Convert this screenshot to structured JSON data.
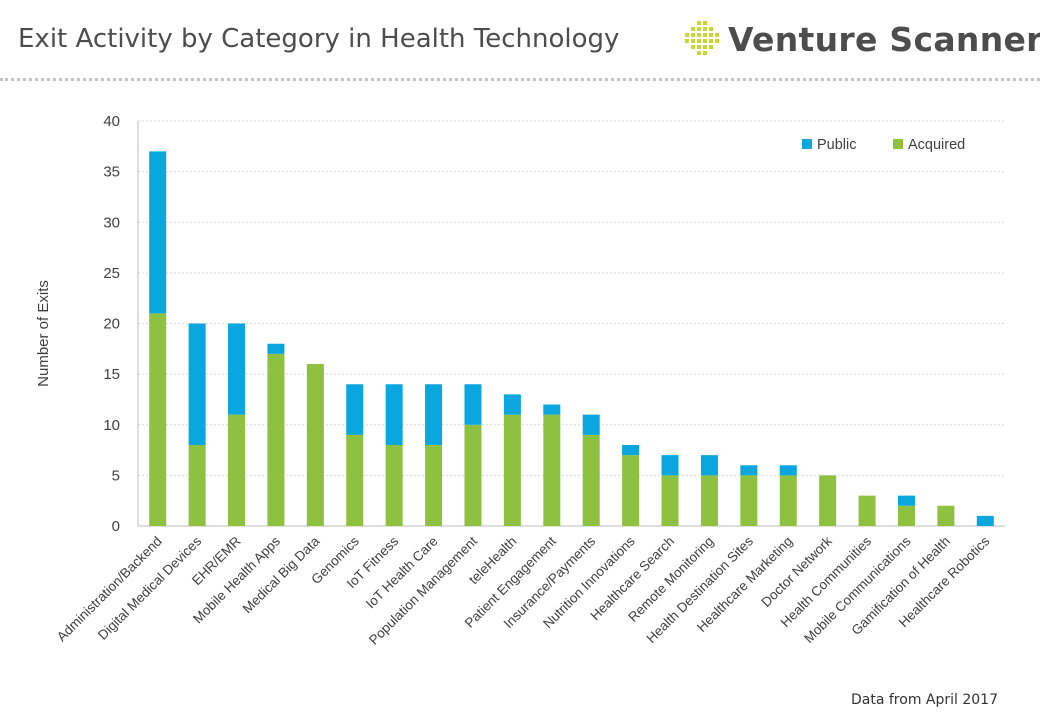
{
  "header": {
    "title": "Exit Activity by Category in Health Technology"
  },
  "brand": {
    "name": "Venture Scanner",
    "logo_icon": "grid-logo-icon",
    "logo_color": "#c5d930"
  },
  "footnote": "Data from April 2017",
  "colors": {
    "public": "#0aa6df",
    "acquired": "#8dc13f",
    "grid": "#d9d9d9",
    "axis": "#bfbfbf",
    "text": "#404040"
  },
  "chart_data": {
    "type": "bar",
    "stacked": true,
    "ylabel": "Number of Exits",
    "xlabel": "",
    "ylim": [
      0,
      40
    ],
    "yticks": [
      0,
      5,
      10,
      15,
      20,
      25,
      30,
      35,
      40
    ],
    "grid": true,
    "legend_position": "top-right",
    "categories": [
      "Administration/Backend",
      "Digital Medical Devices",
      "EHR/EMR",
      "Mobile Health Apps",
      "Medical Big Data",
      "Genomics",
      "IoT Fitness",
      "IoT Health Care",
      "Population Management",
      "teleHealth",
      "Patient Engagement",
      "Insurance/Payments",
      "Nutrition Innovations",
      "Healthcare Search",
      "Remote Monitoring",
      "Health Destination Sites",
      "Healthcare Marketing",
      "Doctor Network",
      "Health Communities",
      "Mobile Communications",
      "Gamification  of Health",
      "Healthcare Robotics"
    ],
    "series": [
      {
        "name": "Acquired",
        "values": [
          21,
          8,
          11,
          17,
          16,
          9,
          8,
          8,
          10,
          11,
          11,
          9,
          7,
          5,
          5,
          5,
          5,
          5,
          3,
          2,
          2,
          0
        ]
      },
      {
        "name": "Public",
        "values": [
          16,
          12,
          9,
          1,
          0,
          5,
          6,
          6,
          4,
          2,
          1,
          2,
          1,
          2,
          2,
          1,
          1,
          0,
          0,
          1,
          0,
          1
        ]
      }
    ]
  }
}
